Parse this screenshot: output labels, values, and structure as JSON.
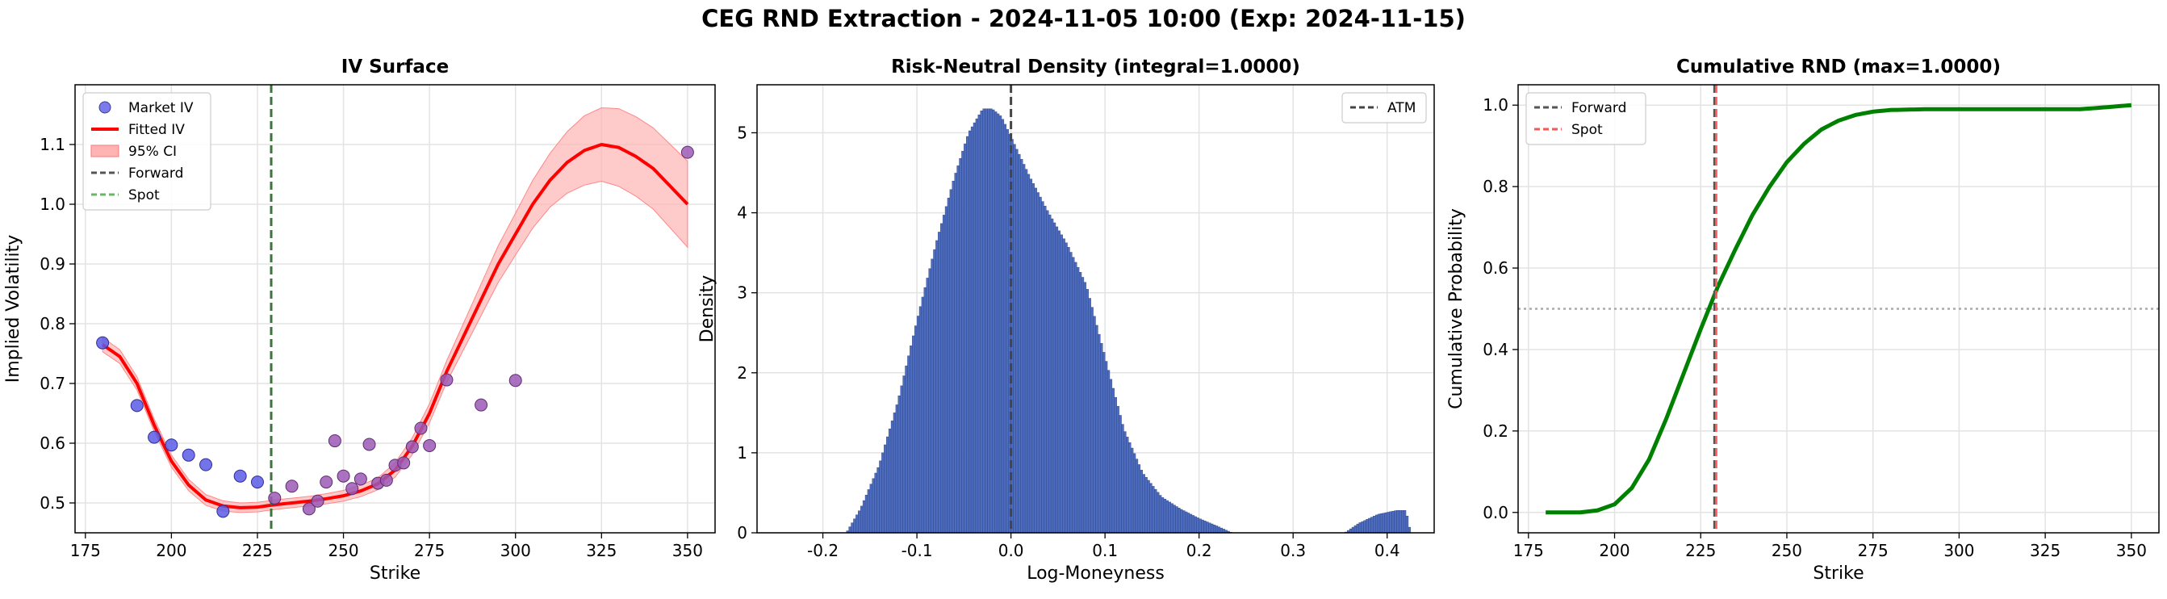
{
  "suptitle": "CEG RND Extraction - 2024-11-05 10:00 (Exp: 2024-11-15)",
  "chart_data": [
    {
      "type": "scatter",
      "title": "IV Surface",
      "xlabel": "Strike",
      "ylabel": "Implied Volatility",
      "xlim": [
        172,
        358
      ],
      "ylim": [
        0.45,
        1.2
      ],
      "xticks": [
        175,
        200,
        225,
        250,
        275,
        300,
        325,
        350
      ],
      "yticks": [
        0.5,
        0.6,
        0.7,
        0.8,
        0.9,
        1.0,
        1.1
      ],
      "grid": true,
      "legend_position": "upper-left",
      "legend": [
        "Market IV",
        "Fitted IV",
        "95% CI",
        "Forward",
        "Spot"
      ],
      "colors": {
        "market": "#4b4bd6",
        "fitted": "#ff0000",
        "ci": "#ffb3b3",
        "forward": "#555555",
        "spot": "#3a7d3a"
      },
      "market_points": [
        [
          180,
          0.768
        ],
        [
          190,
          0.663
        ],
        [
          195,
          0.61
        ],
        [
          200,
          0.597
        ],
        [
          205,
          0.58
        ],
        [
          210,
          0.564
        ],
        [
          215,
          0.486
        ],
        [
          220,
          0.545
        ],
        [
          225,
          0.535
        ],
        [
          230,
          0.508
        ],
        [
          235,
          0.528
        ],
        [
          240,
          0.49
        ],
        [
          242.5,
          0.503
        ],
        [
          245,
          0.535
        ],
        [
          247.5,
          0.604
        ],
        [
          250,
          0.545
        ],
        [
          252.5,
          0.524
        ],
        [
          255,
          0.54
        ],
        [
          257.5,
          0.598
        ],
        [
          260,
          0.533
        ],
        [
          262.5,
          0.538
        ],
        [
          265,
          0.563
        ],
        [
          267.5,
          0.567
        ],
        [
          270,
          0.594
        ],
        [
          272.5,
          0.625
        ],
        [
          275,
          0.596
        ],
        [
          280,
          0.706
        ],
        [
          290,
          0.664
        ],
        [
          300,
          0.705
        ],
        [
          350,
          1.087
        ]
      ],
      "fitted_iv": [
        [
          180,
          0.765
        ],
        [
          185,
          0.745
        ],
        [
          190,
          0.7
        ],
        [
          195,
          0.63
        ],
        [
          200,
          0.57
        ],
        [
          205,
          0.53
        ],
        [
          210,
          0.505
        ],
        [
          215,
          0.495
        ],
        [
          220,
          0.492
        ],
        [
          225,
          0.493
        ],
        [
          230,
          0.497
        ],
        [
          235,
          0.5
        ],
        [
          240,
          0.503
        ],
        [
          245,
          0.507
        ],
        [
          250,
          0.512
        ],
        [
          255,
          0.52
        ],
        [
          260,
          0.532
        ],
        [
          265,
          0.555
        ],
        [
          270,
          0.595
        ],
        [
          275,
          0.65
        ],
        [
          280,
          0.72
        ],
        [
          285,
          0.78
        ],
        [
          290,
          0.84
        ],
        [
          295,
          0.9
        ],
        [
          300,
          0.95
        ],
        [
          305,
          1.0
        ],
        [
          310,
          1.04
        ],
        [
          315,
          1.07
        ],
        [
          320,
          1.09
        ],
        [
          325,
          1.1
        ],
        [
          330,
          1.095
        ],
        [
          335,
          1.08
        ],
        [
          340,
          1.06
        ],
        [
          345,
          1.03
        ],
        [
          350,
          1.0
        ]
      ],
      "ci_halfwidth": [
        [
          180,
          0.012
        ],
        [
          200,
          0.01
        ],
        [
          220,
          0.008
        ],
        [
          240,
          0.008
        ],
        [
          260,
          0.01
        ],
        [
          280,
          0.018
        ],
        [
          300,
          0.035
        ],
        [
          310,
          0.045
        ],
        [
          320,
          0.058
        ],
        [
          330,
          0.065
        ],
        [
          340,
          0.068
        ],
        [
          350,
          0.072
        ]
      ],
      "forward": 229,
      "spot": 229
    },
    {
      "type": "bar",
      "title": "Risk-Neutral Density (integral=1.0000)",
      "xlabel": "Log-Moneyness",
      "ylabel": "Density",
      "xlim": [
        -0.27,
        0.45
      ],
      "ylim": [
        0,
        5.6
      ],
      "xticks": [
        -0.2,
        -0.1,
        0.0,
        0.1,
        0.2,
        0.3,
        0.4
      ],
      "yticks": [
        0,
        1,
        2,
        3,
        4,
        5
      ],
      "grid": true,
      "legend_position": "upper-right",
      "legend": [
        "ATM"
      ],
      "colors": {
        "bars": "#4c6cc0",
        "edge": "#2e3f7a",
        "atm": "#444444"
      },
      "density": [
        [
          -0.175,
          0.0
        ],
        [
          -0.16,
          0.3
        ],
        [
          -0.14,
          0.85
        ],
        [
          -0.12,
          1.65
        ],
        [
          -0.1,
          2.65
        ],
        [
          -0.08,
          3.6
        ],
        [
          -0.06,
          4.45
        ],
        [
          -0.045,
          5.0
        ],
        [
          -0.03,
          5.3
        ],
        [
          -0.02,
          5.3
        ],
        [
          -0.01,
          5.2
        ],
        [
          0.0,
          4.95
        ],
        [
          0.01,
          4.7
        ],
        [
          0.02,
          4.45
        ],
        [
          0.04,
          4.0
        ],
        [
          0.06,
          3.6
        ],
        [
          0.08,
          3.1
        ],
        [
          0.1,
          2.2
        ],
        [
          0.12,
          1.3
        ],
        [
          0.14,
          0.75
        ],
        [
          0.16,
          0.45
        ],
        [
          0.18,
          0.3
        ],
        [
          0.2,
          0.18
        ],
        [
          0.22,
          0.08
        ],
        [
          0.235,
          0.0
        ],
        [
          0.355,
          0.0
        ],
        [
          0.37,
          0.12
        ],
        [
          0.39,
          0.23
        ],
        [
          0.41,
          0.28
        ],
        [
          0.42,
          0.28
        ],
        [
          0.425,
          0.0
        ]
      ],
      "atm": 0.0
    },
    {
      "type": "line",
      "title": "Cumulative RND (max=1.0000)",
      "xlabel": "Strike",
      "ylabel": "Cumulative Probability",
      "xlim": [
        172,
        358
      ],
      "ylim": [
        -0.05,
        1.05
      ],
      "xticks": [
        175,
        200,
        225,
        250,
        275,
        300,
        325,
        350
      ],
      "yticks": [
        0.0,
        0.2,
        0.4,
        0.6,
        0.8,
        1.0
      ],
      "grid": true,
      "legend_position": "upper-left",
      "legend": [
        "Forward",
        "Spot"
      ],
      "colors": {
        "line": "#008000",
        "forward": "#555555",
        "spot": "#ff5555",
        "ref": "#aaaaaa"
      },
      "cdf": [
        [
          180,
          0.0
        ],
        [
          190,
          0.0
        ],
        [
          195,
          0.005
        ],
        [
          200,
          0.02
        ],
        [
          205,
          0.06
        ],
        [
          210,
          0.13
        ],
        [
          215,
          0.23
        ],
        [
          220,
          0.34
        ],
        [
          225,
          0.45
        ],
        [
          230,
          0.555
        ],
        [
          235,
          0.645
        ],
        [
          240,
          0.73
        ],
        [
          245,
          0.8
        ],
        [
          250,
          0.86
        ],
        [
          255,
          0.905
        ],
        [
          260,
          0.94
        ],
        [
          265,
          0.962
        ],
        [
          270,
          0.976
        ],
        [
          275,
          0.984
        ],
        [
          280,
          0.988
        ],
        [
          290,
          0.99
        ],
        [
          300,
          0.99
        ],
        [
          325,
          0.99
        ],
        [
          335,
          0.99
        ],
        [
          340,
          0.993
        ],
        [
          350,
          1.0
        ]
      ],
      "forward": 229,
      "spot": 229.5,
      "reference_level": 0.5
    }
  ]
}
